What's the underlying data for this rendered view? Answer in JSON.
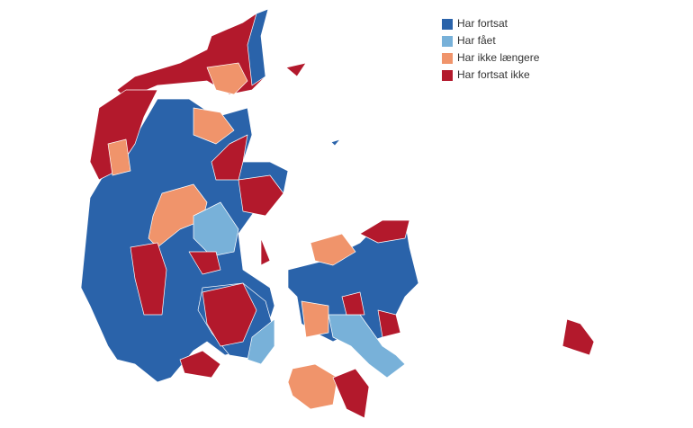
{
  "legend": {
    "items": [
      {
        "label": "Har fortsat",
        "color": "#2a63aa"
      },
      {
        "label": "Har fået",
        "color": "#78b1d9"
      },
      {
        "label": "Har ikke længere",
        "color": "#f0946b"
      },
      {
        "label": "Har fortsat ikke",
        "color": "#b3192c"
      }
    ]
  }
}
